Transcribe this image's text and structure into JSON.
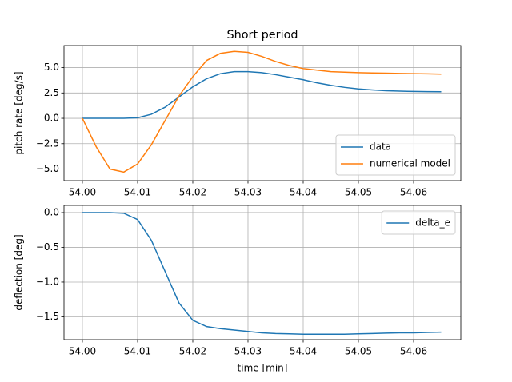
{
  "chart_data": [
    {
      "type": "line",
      "title": "Short period",
      "y_label": "pitch rate [deg/s]",
      "x": [
        54.0,
        54.0025,
        54.005,
        54.0075,
        54.01,
        54.0125,
        54.015,
        54.0175,
        54.02,
        54.0225,
        54.025,
        54.0275,
        54.03,
        54.0325,
        54.035,
        54.0375,
        54.04,
        54.0425,
        54.045,
        54.0475,
        54.05,
        54.0525,
        54.055,
        54.0575,
        54.06,
        54.0625,
        54.065
      ],
      "series": [
        {
          "name": "data",
          "color": "#1f77b4",
          "values": [
            0,
            0,
            0,
            0,
            0.05,
            0.4,
            1.1,
            2.1,
            3.1,
            3.9,
            4.4,
            4.6,
            4.6,
            4.5,
            4.3,
            4.05,
            3.8,
            3.5,
            3.25,
            3.05,
            2.9,
            2.8,
            2.72,
            2.68,
            2.65,
            2.63,
            2.62
          ]
        },
        {
          "name": "numerical model",
          "color": "#ff7f0e",
          "values": [
            0,
            -2.8,
            -5.0,
            -5.3,
            -4.5,
            -2.6,
            -0.2,
            2.2,
            4.1,
            5.7,
            6.4,
            6.6,
            6.5,
            6.1,
            5.6,
            5.2,
            4.9,
            4.75,
            4.6,
            4.55,
            4.5,
            4.47,
            4.45,
            4.42,
            4.4,
            4.38,
            4.35
          ]
        }
      ],
      "xlim": [
        53.99667,
        54.06855
      ],
      "xticks": [
        {
          "value": 54.0,
          "label": "54.00"
        },
        {
          "value": 54.01,
          "label": "54.01"
        },
        {
          "value": 54.02,
          "label": "54.02"
        },
        {
          "value": 54.03,
          "label": "54.03"
        },
        {
          "value": 54.04,
          "label": "54.04"
        },
        {
          "value": 54.05,
          "label": "54.05"
        },
        {
          "value": 54.06,
          "label": "54.06"
        }
      ],
      "ylim": [
        -6.14,
        7.17
      ],
      "yticks": [
        {
          "value": -5,
          "label": "−5.0"
        },
        {
          "value": -2.5,
          "label": "−2.5"
        },
        {
          "value": 0,
          "label": "0.0"
        },
        {
          "value": 2.5,
          "label": "2.5"
        },
        {
          "value": 5,
          "label": "5.0"
        }
      ],
      "grid": true,
      "legend": "lower-right"
    },
    {
      "type": "line",
      "x_label": "time [min]",
      "y_label": "deflection [deg]",
      "x": [
        54.0,
        54.0025,
        54.005,
        54.0075,
        54.01,
        54.0125,
        54.015,
        54.0175,
        54.02,
        54.0225,
        54.025,
        54.0275,
        54.03,
        54.0325,
        54.035,
        54.0375,
        54.04,
        54.0425,
        54.045,
        54.0475,
        54.05,
        54.0525,
        54.055,
        54.0575,
        54.06,
        54.0625,
        54.065
      ],
      "series": [
        {
          "name": "delta_e",
          "color": "#1f77b4",
          "values": [
            0,
            0,
            0,
            -0.01,
            -0.1,
            -0.4,
            -0.85,
            -1.3,
            -1.55,
            -1.64,
            -1.67,
            -1.69,
            -1.71,
            -1.73,
            -1.74,
            -1.745,
            -1.75,
            -1.75,
            -1.75,
            -1.75,
            -1.745,
            -1.74,
            -1.735,
            -1.73,
            -1.73,
            -1.725,
            -1.72
          ]
        }
      ],
      "xlim": [
        53.99667,
        54.06855
      ],
      "xticks": [
        {
          "value": 54.0,
          "label": "54.00"
        },
        {
          "value": 54.01,
          "label": "54.01"
        },
        {
          "value": 54.02,
          "label": "54.02"
        },
        {
          "value": 54.03,
          "label": "54.03"
        },
        {
          "value": 54.04,
          "label": "54.04"
        },
        {
          "value": 54.05,
          "label": "54.05"
        },
        {
          "value": 54.06,
          "label": "54.06"
        }
      ],
      "ylim": [
        -1.828,
        0.103
      ],
      "yticks": [
        {
          "value": -1.5,
          "label": "−1.5"
        },
        {
          "value": -1.0,
          "label": "−1.0"
        },
        {
          "value": -0.5,
          "label": "−0.5"
        },
        {
          "value": 0,
          "label": "0.0"
        }
      ],
      "grid": true,
      "legend": "upper-right"
    }
  ]
}
